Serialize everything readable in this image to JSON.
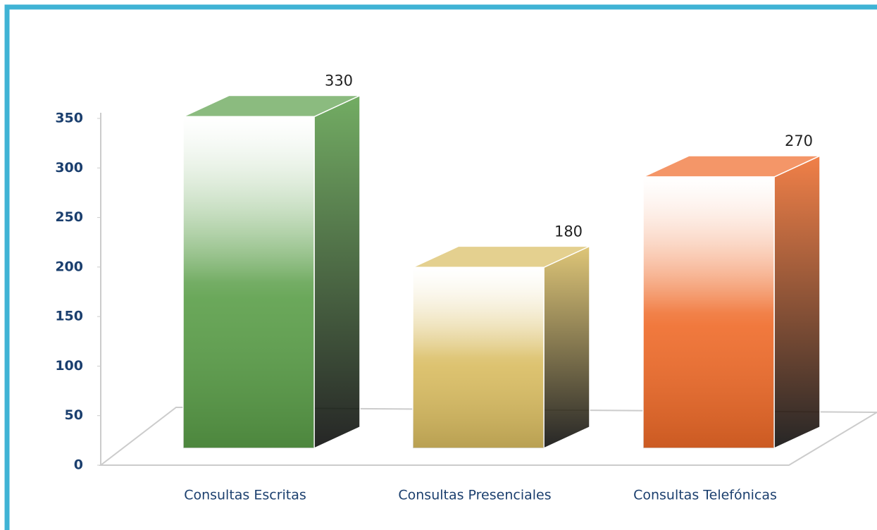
{
  "chart_data": {
    "type": "bar3d",
    "categories": [
      "Consultas Escritas",
      "Consultas Presenciales",
      "Consultas Telefónicas"
    ],
    "values": [
      330,
      180,
      270
    ],
    "colors": [
      "#5a9e48",
      "#d9bc60",
      "#ef6a28"
    ],
    "ylim": [
      0,
      350
    ],
    "yticks": [
      0,
      50,
      100,
      150,
      200,
      250,
      300,
      350
    ],
    "grid": false
  }
}
